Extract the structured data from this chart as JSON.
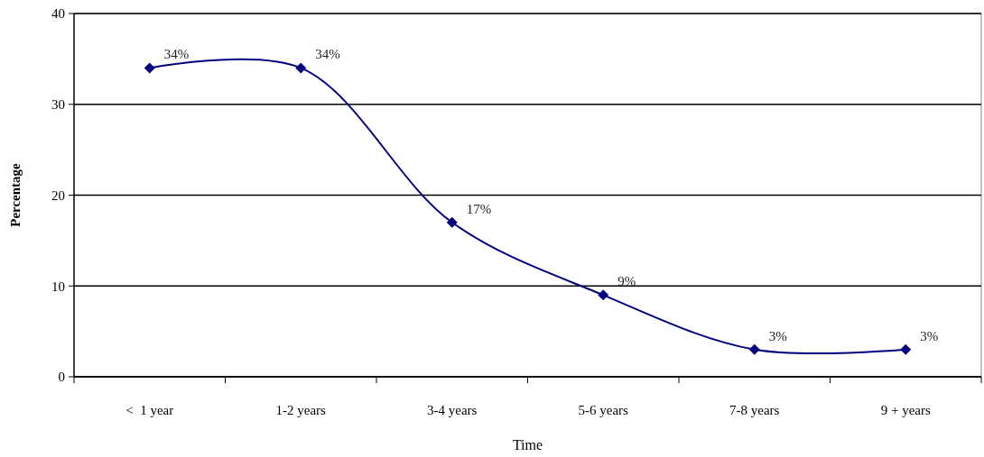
{
  "chart_data": {
    "type": "line",
    "xlabel": "Time",
    "ylabel": "Percentage",
    "categories": [
      "<  1 year",
      "1-2 years",
      "3-4 years",
      "5-6 years",
      "7-8 years",
      "9 + years"
    ],
    "series": [
      {
        "color": "#000080",
        "values": [
          34,
          34,
          17,
          9,
          3,
          3
        ],
        "value_labels": [
          "34%",
          "34%",
          "17%",
          "9%",
          "3%",
          "3%"
        ]
      }
    ],
    "ylim": [
      0,
      40
    ],
    "yticks": [
      0,
      10,
      20,
      30,
      40
    ],
    "grid": "y",
    "marker": "diamond",
    "line_style": "solid"
  }
}
